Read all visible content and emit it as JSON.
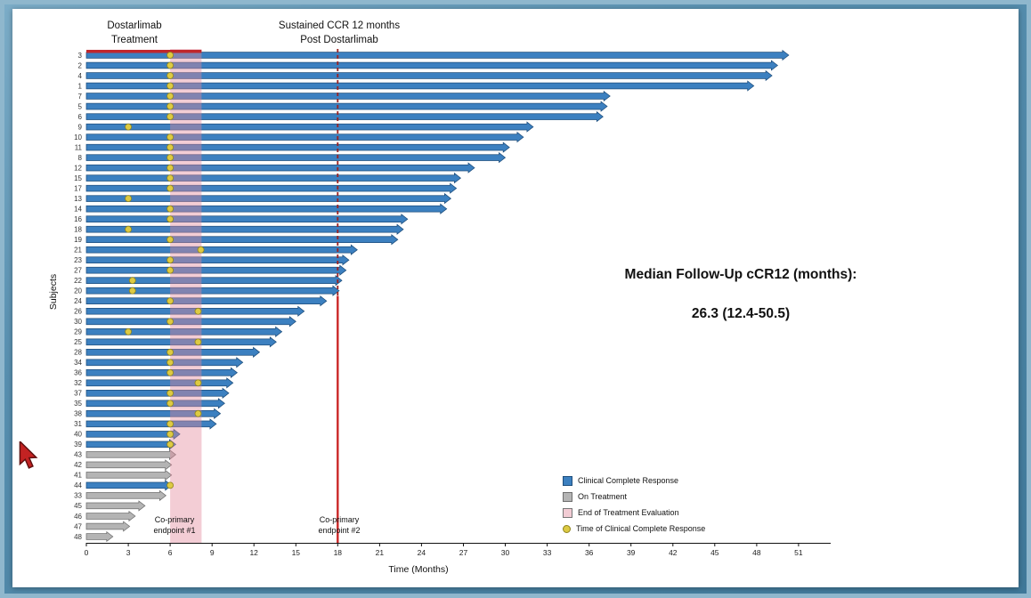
{
  "annotations": {
    "dostarlimab_treatment": "Dostarlimab\nTreatment",
    "sustained_ccr": "Sustained CCR 12 months\nPost Dostarlimab",
    "co_primary_1": "Co-primary\nendpoint #1",
    "co_primary_2": "Co-primary\nendpoint #2",
    "median_line1": "Median Follow-Up cCR12 (months):",
    "median_line2": "26.3 (12.4-50.5)"
  },
  "legend": {
    "items": [
      {
        "label": "Clinical Complete Response",
        "shape": "square",
        "color": "#3c80c0",
        "border": "#1e4e7c"
      },
      {
        "label": "On Treatment",
        "shape": "square",
        "color": "#b4b4b4",
        "border": "#6e6e6e"
      },
      {
        "label": "End of Treatment Evaluation",
        "shape": "square",
        "color": "#f2ccd4",
        "border": "#777777"
      },
      {
        "label": "Time of Clinical Complete Response",
        "shape": "circle",
        "color": "#ddca43",
        "border": "#8f841c"
      }
    ]
  },
  "chart_data": {
    "type": "bar",
    "subtype": "swimmer-plot",
    "title": "",
    "xlabel": "Time (Months)",
    "ylabel": "Subjects",
    "xlim": [
      0,
      53.3
    ],
    "xticks": [
      0,
      3,
      6,
      9,
      12,
      15,
      18,
      21,
      24,
      27,
      30,
      33,
      36,
      39,
      42,
      45,
      48,
      51
    ],
    "grid": false,
    "legend_position": "lower right",
    "colors": {
      "ccr": "#3c80c0",
      "ccr_border": "#1e4e7c",
      "on_treatment": "#b4b4b4",
      "on_treatment_border": "#6e6e6e",
      "dot": "#ddca43",
      "dot_border": "#8f841c"
    },
    "treatment_bar": {
      "from": 0,
      "to": 8.25,
      "color": "#c0272c",
      "label": "Dostarlimab Treatment"
    },
    "eot_band": {
      "from": 6,
      "to": 8.25,
      "color": "#e2889a",
      "opacity": 0.42,
      "label": "End of Treatment Evaluation"
    },
    "endpoint2_line": {
      "x": 18,
      "dash_color": "#9b1f1f",
      "solid_color": "#cb2727",
      "solid_from_subject": "24",
      "label": "Co-primary endpoint #2"
    },
    "subjects": [
      {
        "id": "3",
        "end": 50.3,
        "status": "ccr",
        "ccr_time": 6
      },
      {
        "id": "2",
        "end": 49.5,
        "status": "ccr",
        "ccr_time": 6
      },
      {
        "id": "4",
        "end": 49.1,
        "status": "ccr",
        "ccr_time": 6
      },
      {
        "id": "1",
        "end": 47.8,
        "status": "ccr",
        "ccr_time": 6
      },
      {
        "id": "7",
        "end": 37.5,
        "status": "ccr",
        "ccr_time": 6
      },
      {
        "id": "5",
        "end": 37.3,
        "status": "ccr",
        "ccr_time": 6
      },
      {
        "id": "6",
        "end": 37.0,
        "status": "ccr",
        "ccr_time": 6
      },
      {
        "id": "9",
        "end": 32.0,
        "status": "ccr",
        "ccr_time": 3
      },
      {
        "id": "10",
        "end": 31.3,
        "status": "ccr",
        "ccr_time": 6
      },
      {
        "id": "11",
        "end": 30.3,
        "status": "ccr",
        "ccr_time": 6
      },
      {
        "id": "8",
        "end": 30.0,
        "status": "ccr",
        "ccr_time": 6
      },
      {
        "id": "12",
        "end": 27.8,
        "status": "ccr",
        "ccr_time": 6
      },
      {
        "id": "15",
        "end": 26.8,
        "status": "ccr",
        "ccr_time": 6
      },
      {
        "id": "17",
        "end": 26.5,
        "status": "ccr",
        "ccr_time": 6
      },
      {
        "id": "13",
        "end": 26.1,
        "status": "ccr",
        "ccr_time": 3
      },
      {
        "id": "14",
        "end": 25.8,
        "status": "ccr",
        "ccr_time": 6
      },
      {
        "id": "16",
        "end": 23.0,
        "status": "ccr",
        "ccr_time": 6
      },
      {
        "id": "18",
        "end": 22.7,
        "status": "ccr",
        "ccr_time": 3
      },
      {
        "id": "19",
        "end": 22.3,
        "status": "ccr",
        "ccr_time": 6
      },
      {
        "id": "21",
        "end": 19.4,
        "status": "ccr",
        "ccr_time": 8.2
      },
      {
        "id": "23",
        "end": 18.8,
        "status": "ccr",
        "ccr_time": 6
      },
      {
        "id": "27",
        "end": 18.6,
        "status": "ccr",
        "ccr_time": 6
      },
      {
        "id": "22",
        "end": 18.3,
        "status": "ccr",
        "ccr_time": 3.3
      },
      {
        "id": "20",
        "end": 18.1,
        "status": "ccr",
        "ccr_time": 3.3
      },
      {
        "id": "24",
        "end": 17.2,
        "status": "ccr",
        "ccr_time": 6
      },
      {
        "id": "26",
        "end": 15.6,
        "status": "ccr",
        "ccr_time": 8
      },
      {
        "id": "30",
        "end": 15.0,
        "status": "ccr",
        "ccr_time": 6
      },
      {
        "id": "29",
        "end": 14.0,
        "status": "ccr",
        "ccr_time": 3
      },
      {
        "id": "25",
        "end": 13.6,
        "status": "ccr",
        "ccr_time": 8
      },
      {
        "id": "28",
        "end": 12.4,
        "status": "ccr",
        "ccr_time": 6
      },
      {
        "id": "34",
        "end": 11.2,
        "status": "ccr",
        "ccr_time": 6
      },
      {
        "id": "36",
        "end": 10.8,
        "status": "ccr",
        "ccr_time": 6
      },
      {
        "id": "32",
        "end": 10.5,
        "status": "ccr",
        "ccr_time": 8
      },
      {
        "id": "37",
        "end": 10.2,
        "status": "ccr",
        "ccr_time": 6
      },
      {
        "id": "35",
        "end": 9.9,
        "status": "ccr",
        "ccr_time": 6
      },
      {
        "id": "38",
        "end": 9.6,
        "status": "ccr",
        "ccr_time": 8
      },
      {
        "id": "31",
        "end": 9.3,
        "status": "ccr",
        "ccr_time": 6
      },
      {
        "id": "40",
        "end": 6.7,
        "status": "ccr",
        "ccr_time": 6
      },
      {
        "id": "39",
        "end": 6.4,
        "status": "ccr",
        "ccr_time": 6
      },
      {
        "id": "43",
        "end": 6.4,
        "status": "on_treatment",
        "ccr_time": null
      },
      {
        "id": "42",
        "end": 6.1,
        "status": "on_treatment",
        "ccr_time": null
      },
      {
        "id": "41",
        "end": 6.1,
        "status": "on_treatment",
        "ccr_time": null
      },
      {
        "id": "44",
        "end": 6.1,
        "status": "ccr",
        "ccr_time": 6
      },
      {
        "id": "33",
        "end": 5.7,
        "status": "on_treatment",
        "ccr_time": null
      },
      {
        "id": "45",
        "end": 4.2,
        "status": "on_treatment",
        "ccr_time": null
      },
      {
        "id": "46",
        "end": 3.5,
        "status": "on_treatment",
        "ccr_time": null
      },
      {
        "id": "47",
        "end": 3.1,
        "status": "on_treatment",
        "ccr_time": null
      },
      {
        "id": "48",
        "end": 1.9,
        "status": "on_treatment",
        "ccr_time": null
      }
    ]
  }
}
